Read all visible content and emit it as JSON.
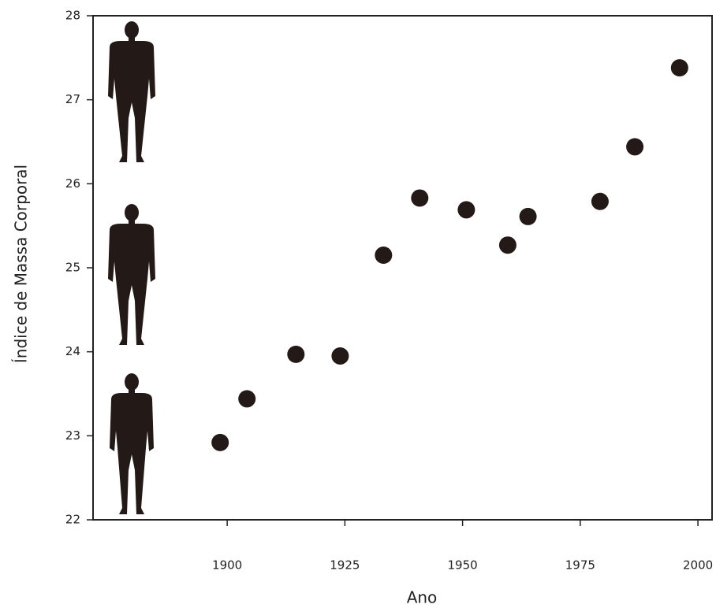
{
  "chart_data": {
    "type": "scatter",
    "x_label": "Ano",
    "y_label": "Índice de Massa Corporal",
    "x": [
      1898.5,
      1904.2,
      1914.6,
      1924.0,
      1933.2,
      1940.9,
      1950.8,
      1959.6,
      1963.9,
      1979.2,
      1986.6,
      1996.1
    ],
    "values": [
      22.92,
      23.44,
      23.97,
      23.95,
      25.15,
      25.83,
      25.69,
      25.27,
      25.61,
      25.79,
      26.44,
      27.38
    ],
    "color": "#231a17",
    "xlim": [
      1871.5,
      2003
    ],
    "xticks": [
      1900,
      1925,
      1950,
      1975,
      2000
    ],
    "ylim": [
      22,
      28
    ],
    "yticks": [
      22,
      23,
      24,
      25,
      26,
      27,
      28
    ]
  }
}
